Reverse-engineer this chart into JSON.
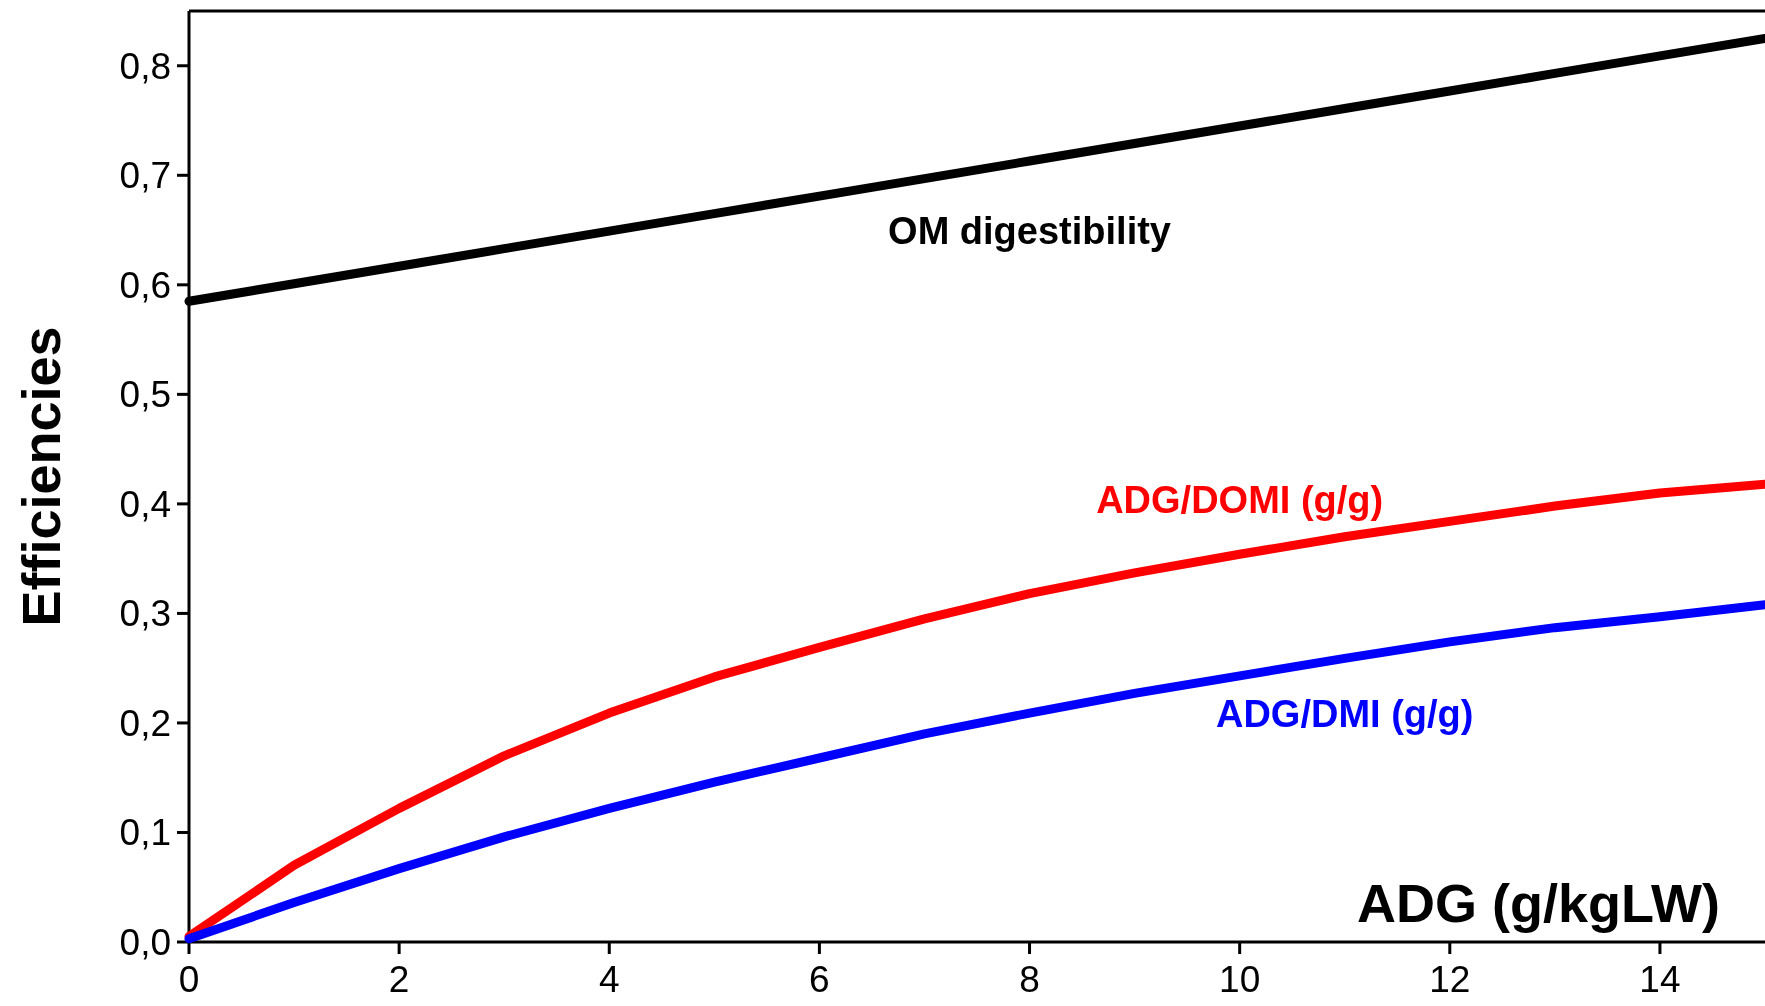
{
  "chart_data": {
    "type": "line",
    "xlabel": "ADG (g/kgLW)",
    "ylabel": "Efficiencies",
    "xlim": [
      0,
      15
    ],
    "ylim": [
      0,
      0.85
    ],
    "xticks": [
      0,
      2,
      4,
      6,
      8,
      10,
      12,
      14
    ],
    "yticks": [
      {
        "value": 0,
        "label": "0,0"
      },
      {
        "value": 0.1,
        "label": "0,1"
      },
      {
        "value": 0.2,
        "label": "0,2"
      },
      {
        "value": 0.3,
        "label": "0,3"
      },
      {
        "value": 0.4,
        "label": "0,4"
      },
      {
        "value": 0.5,
        "label": "0,5"
      },
      {
        "value": 0.6,
        "label": "0,6"
      },
      {
        "value": 0.7,
        "label": "0,7"
      },
      {
        "value": 0.8,
        "label": "0,8"
      }
    ],
    "x": [
      0,
      1,
      2,
      3,
      4,
      5,
      6,
      7,
      8,
      9,
      10,
      11,
      12,
      13,
      14,
      15
    ],
    "series": [
      {
        "name": "OM digestibility",
        "color": "#000000",
        "values": [
          0.585,
          0.601,
          0.617,
          0.633,
          0.649,
          0.665,
          0.681,
          0.697,
          0.713,
          0.729,
          0.745,
          0.761,
          0.777,
          0.793,
          0.809,
          0.825
        ]
      },
      {
        "name": "ADG/DOMI (g/g)",
        "color": "#ff0000",
        "values": [
          0.005,
          0.07,
          0.122,
          0.17,
          0.209,
          0.242,
          0.269,
          0.295,
          0.318,
          0.337,
          0.354,
          0.37,
          0.384,
          0.398,
          0.41,
          0.418
        ]
      },
      {
        "name": "ADG/DMI (g/g)",
        "color": "#0000ff",
        "values": [
          0.003,
          0.036,
          0.067,
          0.096,
          0.122,
          0.146,
          0.168,
          0.19,
          0.209,
          0.227,
          0.243,
          0.259,
          0.274,
          0.287,
          0.297,
          0.308
        ]
      }
    ],
    "grid": false,
    "marker": "none",
    "line_style": "solid"
  }
}
